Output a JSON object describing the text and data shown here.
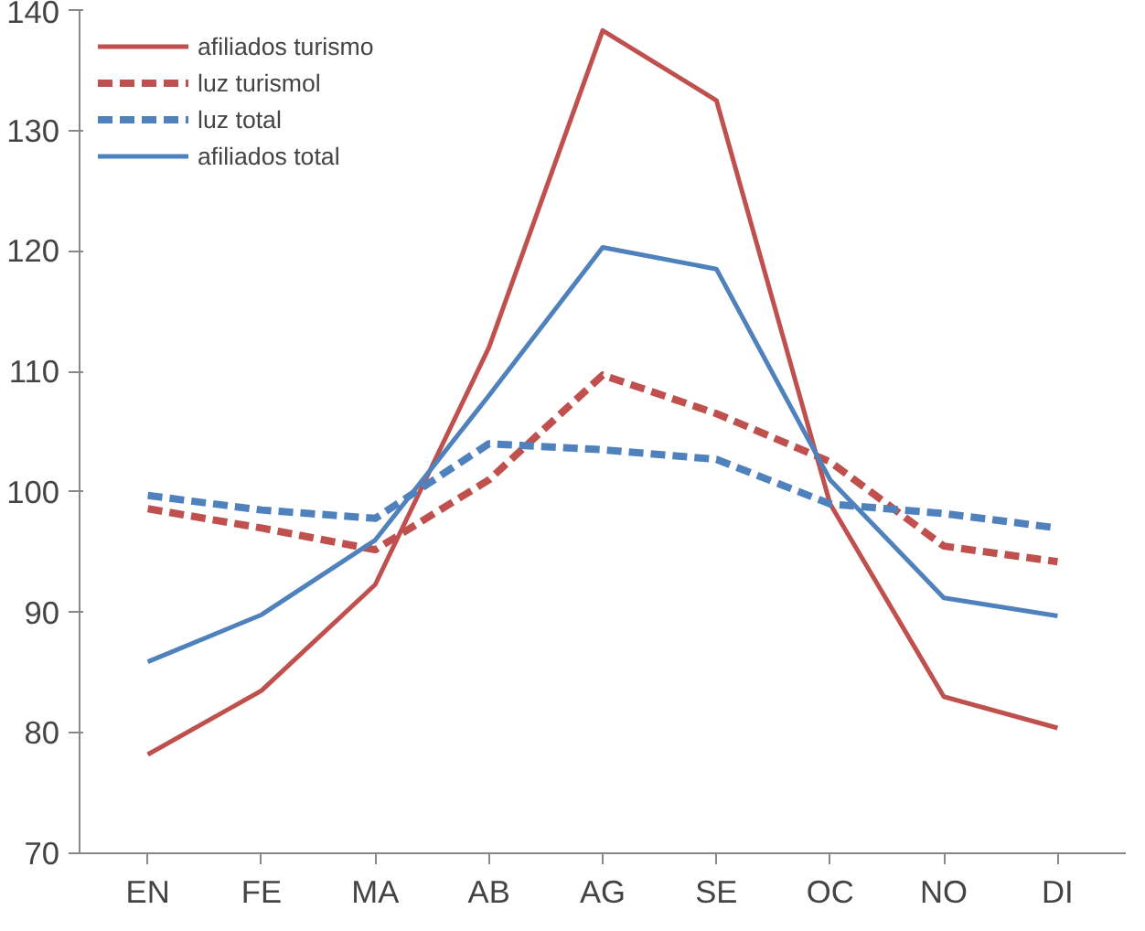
{
  "chart_data": {
    "type": "line",
    "categories": [
      "EN",
      "FE",
      "MA",
      "AB",
      "AG",
      "SE",
      "OC",
      "NO",
      "DI"
    ],
    "series": [
      {
        "name": "afiliados turismo",
        "color": "#c0504d",
        "line_style": "solid",
        "values": [
          78.2,
          83.5,
          92.3,
          112,
          138.3,
          132.5,
          99,
          83,
          80.4
        ]
      },
      {
        "name": "luz turismol",
        "color": "#c0504d",
        "line_style": "dashed",
        "values": [
          98.6,
          97,
          95.2,
          101,
          109.7,
          106.5,
          102.5,
          95.5,
          94.2
        ]
      },
      {
        "name": "luz total",
        "color": "#4f81bd",
        "line_style": "dashed",
        "values": [
          99.7,
          98.5,
          97.8,
          104,
          103.5,
          102.7,
          99,
          98.2,
          97
        ]
      },
      {
        "name": "afiliados total",
        "color": "#4f81bd",
        "line_style": "solid",
        "values": [
          85.9,
          89.8,
          96,
          108,
          120.3,
          118.5,
          101,
          91.2,
          89.7
        ]
      }
    ],
    "ylim": [
      70,
      140
    ],
    "yticks": [
      70,
      80,
      90,
      100,
      110,
      120,
      130,
      140
    ],
    "grid": false,
    "legend": "top left",
    "marker": "none"
  }
}
